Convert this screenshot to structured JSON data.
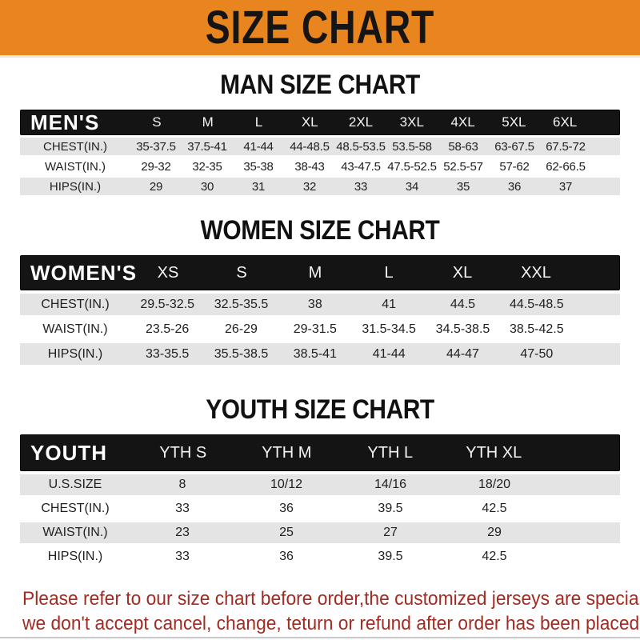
{
  "banner": {
    "title": "SIZE CHART"
  },
  "colors": {
    "banner_bg": "#E8851E",
    "bar_bg": "#141414",
    "row_shade": "#E4E4E4",
    "footer_red": "#A32B22"
  },
  "tables": [
    {
      "title": "MAN SIZE CHART",
      "corner_label": "MEN'S",
      "columns": [
        "S",
        "M",
        "L",
        "XL",
        "2XL",
        "3XL",
        "4XL",
        "5XL",
        "6XL"
      ],
      "rows": [
        {
          "label": "CHEST(IN.)",
          "values": [
            "35-37.5",
            "37.5-41",
            "41-44",
            "44-48.5",
            "48.5-53.5",
            "53.5-58",
            "58-63",
            "63-67.5",
            "67.5-72"
          ]
        },
        {
          "label": "WAIST(IN.)",
          "values": [
            "29-32",
            "32-35",
            "35-38",
            "38-43",
            "43-47.5",
            "47.5-52.5",
            "52.5-57",
            "57-62",
            "62-66.5"
          ]
        },
        {
          "label": "HIPS(IN.)",
          "values": [
            "29",
            "30",
            "31",
            "32",
            "33",
            "34",
            "35",
            "36",
            "37"
          ]
        }
      ]
    },
    {
      "title": "WOMEN SIZE CHART",
      "corner_label": "WOMEN'S",
      "columns": [
        "XS",
        "S",
        "M",
        "L",
        "XL",
        "XXL"
      ],
      "rows": [
        {
          "label": "CHEST(IN.)",
          "values": [
            "29.5-32.5",
            "32.5-35.5",
            "38",
            "41",
            "44.5",
            "44.5-48.5"
          ]
        },
        {
          "label": "WAIST(IN.)",
          "values": [
            "23.5-26",
            "26-29",
            "29-31.5",
            "31.5-34.5",
            "34.5-38.5",
            "38.5-42.5"
          ]
        },
        {
          "label": "HIPS(IN.)",
          "values": [
            "33-35.5",
            "35.5-38.5",
            "38.5-41",
            "41-44",
            "44-47",
            "47-50"
          ]
        }
      ]
    },
    {
      "title": "YOUTH SIZE CHART",
      "corner_label": "YOUTH",
      "columns": [
        "YTH S",
        "YTH M",
        "YTH L",
        "YTH XL"
      ],
      "rows": [
        {
          "label": "U.S.SIZE",
          "values": [
            "8",
            "10/12",
            "14/16",
            "18/20"
          ]
        },
        {
          "label": "CHEST(IN.)",
          "values": [
            "33",
            "36",
            "39.5",
            "42.5"
          ]
        },
        {
          "label": "WAIST(IN.)",
          "values": [
            "23",
            "25",
            "27",
            "29"
          ]
        },
        {
          "label": "HIPS(IN.)",
          "values": [
            "33",
            "36",
            "39.5",
            "42.5"
          ]
        }
      ]
    }
  ],
  "footer": {
    "line1": "Please refer to our size chart before order,the customized jerseys are special products,",
    "line2": "we don't accept cancel, change, teturn or refund after order has been placed!"
  }
}
